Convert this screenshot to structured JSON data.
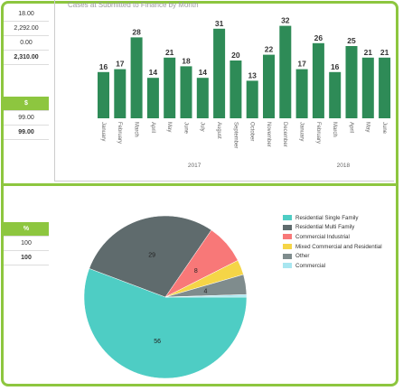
{
  "top_table": {
    "rows": [
      "18.00",
      "2,292.00",
      "0.00",
      "2,310.00"
    ]
  },
  "mid_table": {
    "header": "$",
    "rows": [
      "99.00",
      "99.00"
    ]
  },
  "pct_table": {
    "header": "%",
    "rows": [
      "100",
      "100"
    ]
  },
  "chart_data": [
    {
      "type": "bar",
      "title": "Cases at Submitted to Finance by Month",
      "color": "#2e8b57",
      "categories": [
        "January",
        "February",
        "March",
        "April",
        "May",
        "June",
        "July",
        "August",
        "September",
        "October",
        "November",
        "December",
        "January",
        "February",
        "March",
        "April",
        "May",
        "June"
      ],
      "values": [
        16,
        17,
        28,
        14,
        21,
        18,
        14,
        31,
        20,
        13,
        22,
        32,
        17,
        26,
        16,
        25,
        21,
        21
      ],
      "year_groups": [
        {
          "label": "2017",
          "from": 0,
          "to": 11
        },
        {
          "label": "2018",
          "from": 12,
          "to": 17
        }
      ]
    },
    {
      "type": "pie",
      "slices": [
        {
          "label": "Residential Single Family",
          "value": 56,
          "color": "#4ecdc4",
          "show_label": "56"
        },
        {
          "label": "Residential Multi Family",
          "value": 29,
          "color": "#5f6b6d",
          "show_label": "29"
        },
        {
          "label": "Commercial Industrial",
          "value": 8,
          "color": "#f87878",
          "show_label": "8"
        },
        {
          "label": "Mixed Commercial and Residential",
          "value": 3,
          "color": "#f5d547",
          "show_label": ""
        },
        {
          "label": "Other",
          "value": 4,
          "color": "#7f8c8d",
          "show_label": "4"
        },
        {
          "label": "Commercial",
          "value": 0.5,
          "color": "#a8e6f0",
          "show_label": ""
        }
      ]
    }
  ]
}
